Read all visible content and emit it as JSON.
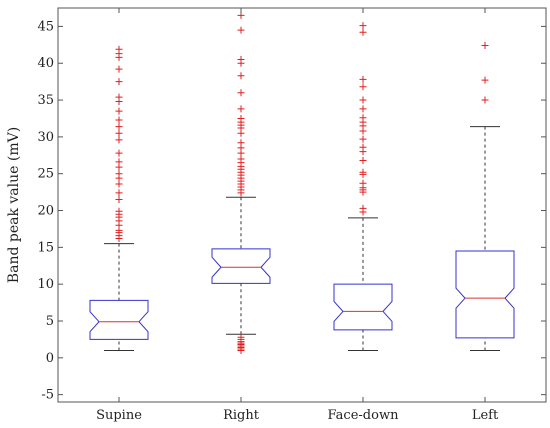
{
  "chart_data": {
    "type": "boxplot",
    "title": "",
    "xlabel": "",
    "ylabel": "Band peak value (mV)",
    "ylim": [
      -6,
      47.5
    ],
    "yticks": [
      -5,
      0,
      5,
      10,
      15,
      20,
      25,
      30,
      35,
      40,
      45
    ],
    "notched": true,
    "grid": false,
    "categories": [
      "Supine",
      "Right",
      "Face-down",
      "Left"
    ],
    "boxes": [
      {
        "category": "Supine",
        "whisker_low": 1.0,
        "q1": 2.5,
        "median": 4.9,
        "q3": 7.8,
        "whisker_high": 15.5,
        "outliers": [
          16.2,
          16.6,
          17.0,
          17.3,
          18.0,
          18.6,
          19.1,
          19.5,
          19.9,
          21.5,
          22.4,
          23.6,
          24.4,
          25.0,
          25.9,
          26.6,
          27.8,
          29.6,
          30.5,
          31.4,
          32.3,
          33.5,
          34.8,
          35.4,
          37.5,
          39.2,
          40.8,
          41.3,
          41.9
        ]
      },
      {
        "category": "Right",
        "whisker_low": 3.2,
        "q1": 10.1,
        "median": 12.3,
        "q3": 14.8,
        "whisker_high": 21.8,
        "outliers": [
          1.0,
          1.2,
          1.4,
          1.6,
          1.8,
          2.0,
          2.2,
          2.5,
          2.8,
          22.4,
          22.8,
          23.2,
          23.6,
          24.0,
          24.4,
          24.8,
          25.2,
          25.6,
          26.0,
          26.5,
          27.0,
          27.8,
          28.5,
          29.2,
          30.5,
          31.2,
          31.6,
          32.0,
          32.5,
          33.8,
          36.0,
          38.3,
          40.0,
          40.5,
          44.5,
          46.5
        ]
      },
      {
        "category": "Face-down",
        "whisker_low": 1.0,
        "q1": 3.8,
        "median": 6.3,
        "q3": 10.0,
        "whisker_high": 19.0,
        "outliers": [
          19.8,
          20.3,
          22.5,
          22.8,
          23.1,
          23.7,
          24.9,
          25.2,
          26.8,
          28.0,
          28.6,
          29.7,
          30.8,
          31.5,
          32.0,
          32.6,
          33.8,
          35.0,
          36.8,
          37.8,
          44.2,
          45.1
        ]
      },
      {
        "category": "Left",
        "whisker_low": 1.0,
        "q1": 2.7,
        "median": 8.1,
        "q3": 14.5,
        "whisker_high": 31.4,
        "outliers": [
          35.0,
          37.7,
          42.4
        ]
      }
    ],
    "colors": {
      "box": "#3333cc",
      "median": "#e03030",
      "whisker": "#333333",
      "outlier": "#e01f1f",
      "axes": "#555555"
    }
  }
}
